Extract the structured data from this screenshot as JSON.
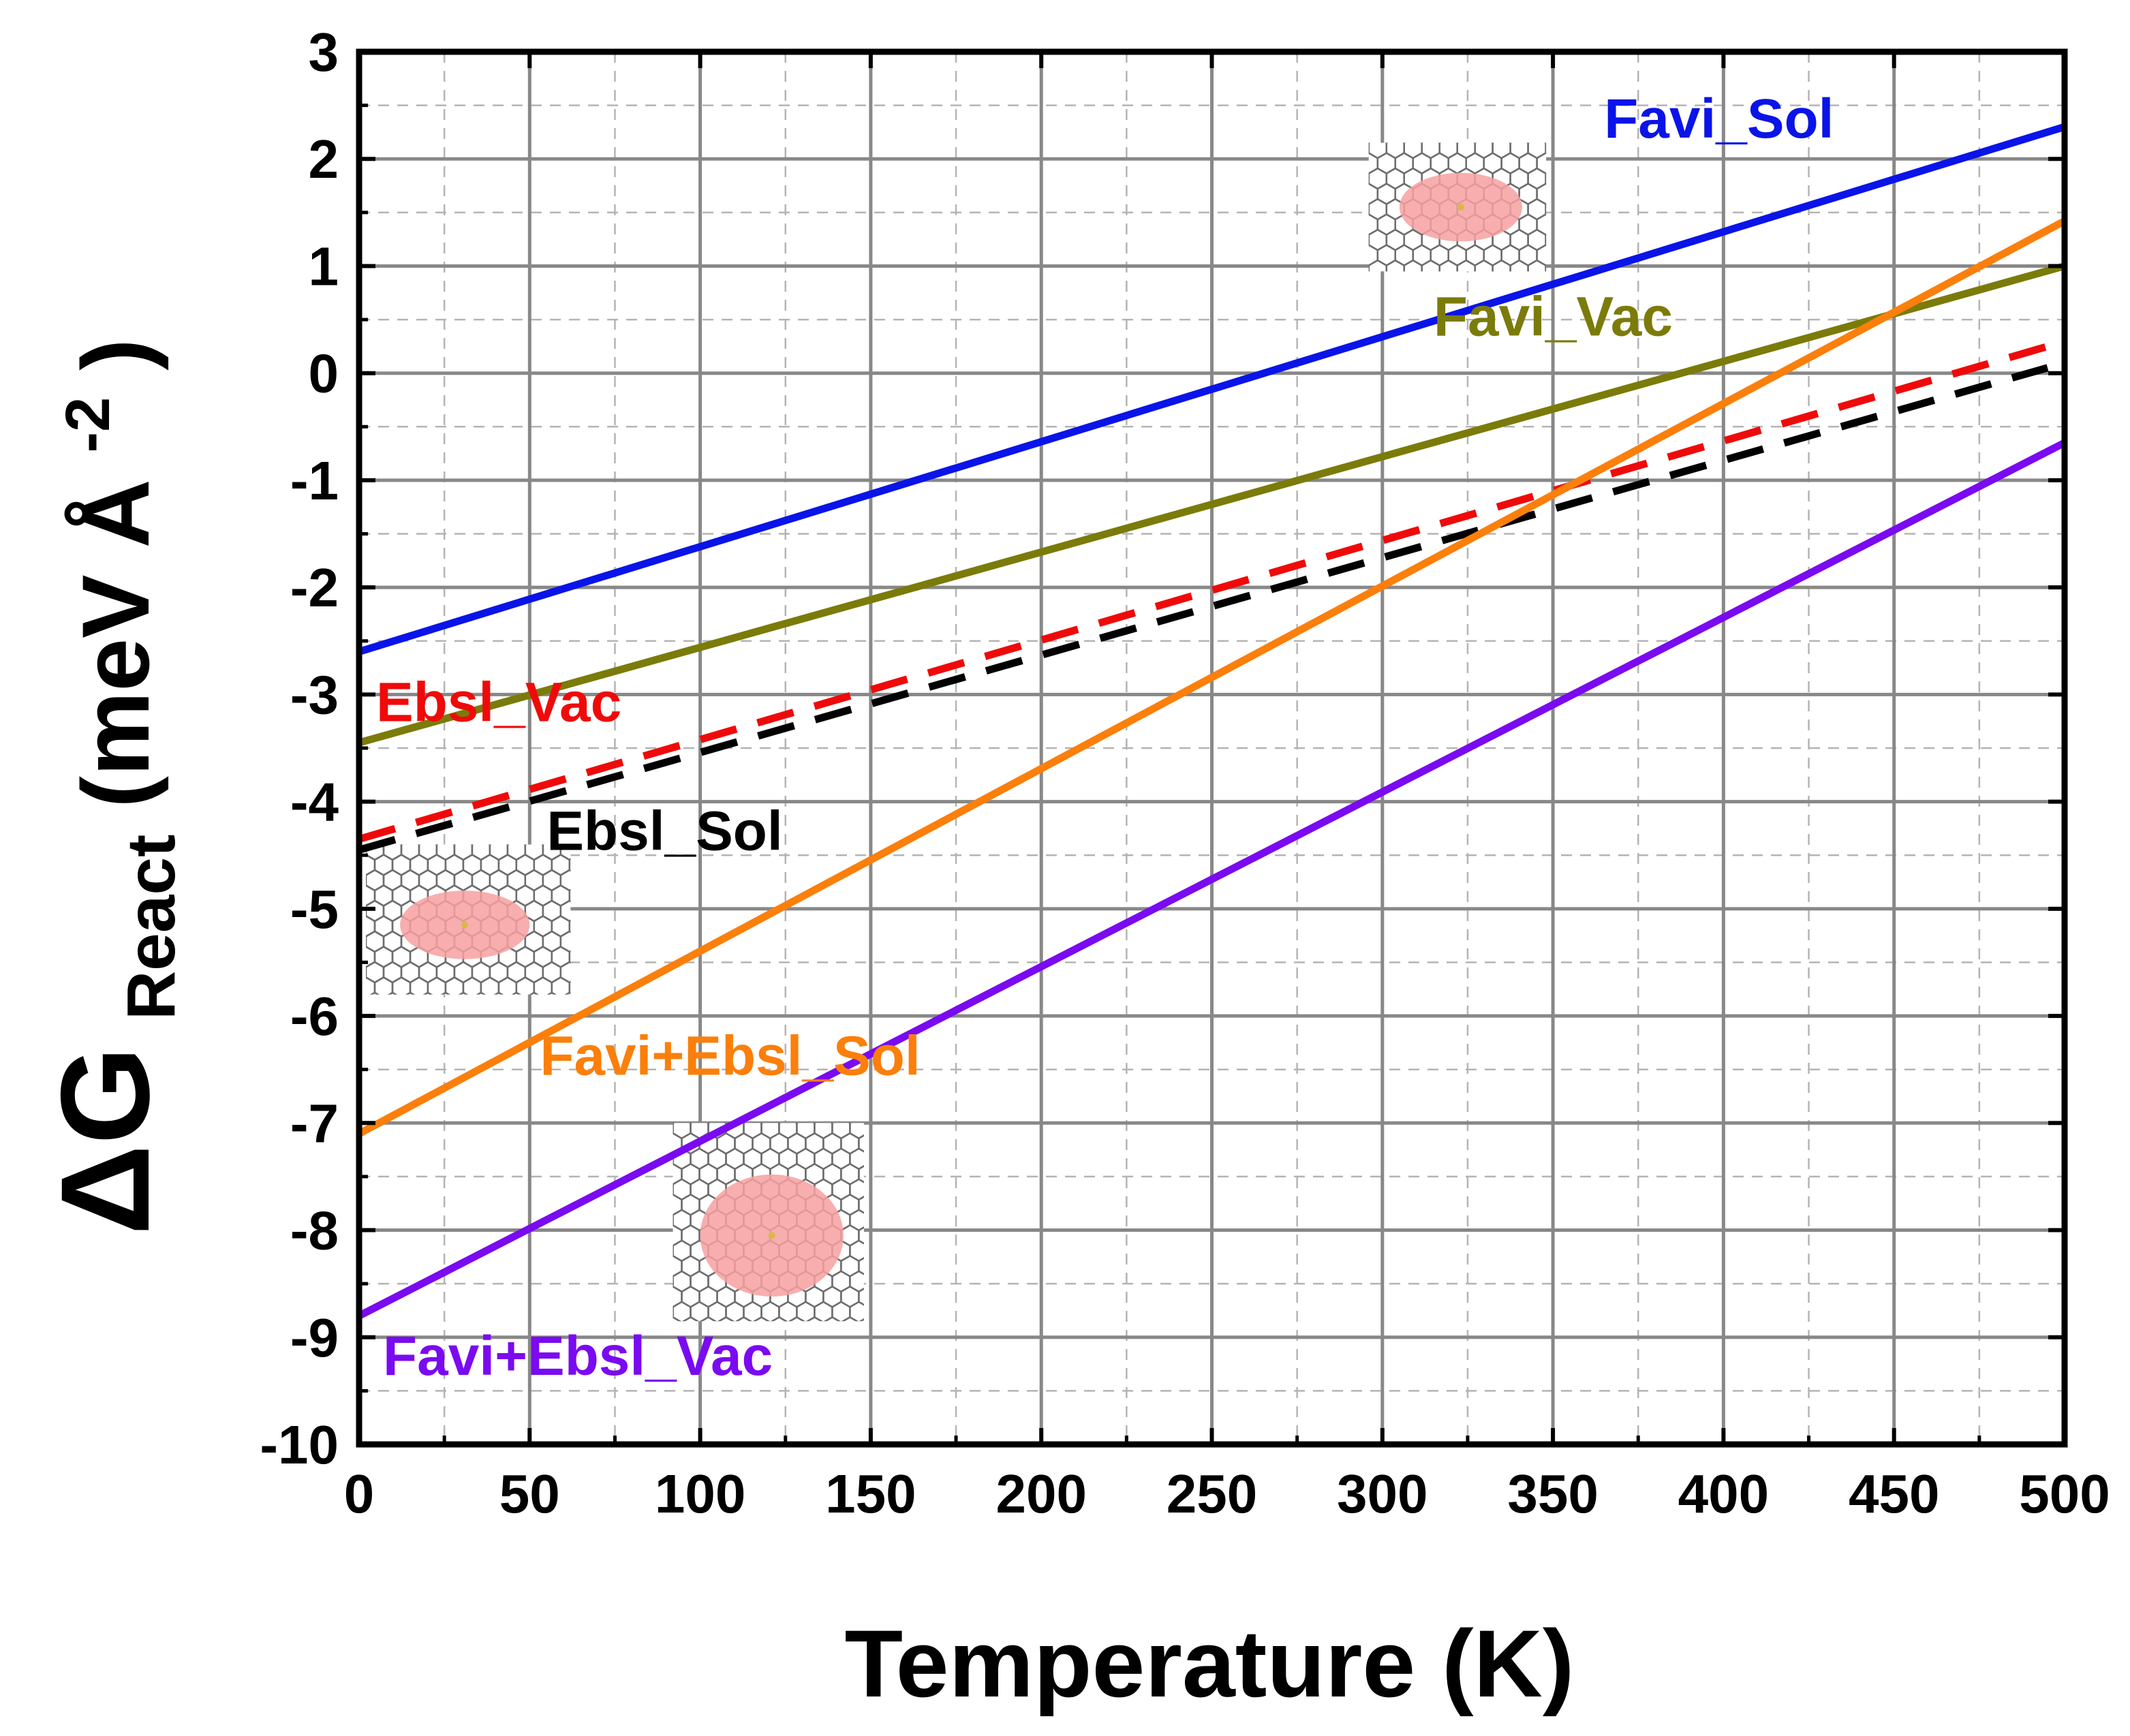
{
  "chart_data": {
    "type": "line",
    "title": "",
    "xlabel": "Temperature (K)",
    "ylabel": {
      "prefix": "ΔG",
      "subscript": "React",
      "unit_open": "(meV Å",
      "superscript": "-2",
      "unit_close": ")"
    },
    "xlim": [
      0,
      500
    ],
    "ylim": [
      -10,
      3
    ],
    "x_ticks": [
      0,
      50,
      100,
      150,
      200,
      250,
      300,
      350,
      400,
      450,
      500
    ],
    "y_ticks": [
      3,
      2,
      1,
      0,
      -1,
      -2,
      -3,
      -4,
      -5,
      -6,
      -7,
      -8,
      -9,
      -10
    ],
    "grid": true,
    "legend": "inline labels",
    "series": [
      {
        "name": "Favi_Sol",
        "color": "#0a14e8",
        "style": "solid",
        "x": [
          0,
          500
        ],
        "values": [
          -2.6,
          2.3
        ],
        "label_at": [
          365,
          2.2
        ],
        "label_anchor": "start"
      },
      {
        "name": "Favi_Vac",
        "color": "#7b7b0a",
        "style": "solid",
        "x": [
          0,
          500
        ],
        "values": [
          -3.45,
          1.0
        ],
        "label_at": [
          315,
          0.35
        ],
        "label_anchor": "start"
      },
      {
        "name": "Ebsl_Vac",
        "color": "#ef0a0a",
        "style": "dashed",
        "x": [
          0,
          495
        ],
        "values": [
          -4.35,
          0.25
        ],
        "label_at": [
          5,
          -3.25
        ],
        "label_anchor": "start"
      },
      {
        "name": "Ebsl_Sol",
        "color": "#000000",
        "style": "dashed",
        "x": [
          0,
          495
        ],
        "values": [
          -4.45,
          0.05
        ],
        "label_at": [
          55,
          -4.45
        ],
        "label_anchor": "start"
      },
      {
        "name": "Favi+Ebsl_Sol",
        "color": "#fb7f0a",
        "style": "solid",
        "x": [
          0,
          500
        ],
        "values": [
          -7.1,
          1.42
        ],
        "label_at": [
          53,
          -6.55
        ],
        "label_anchor": "start"
      },
      {
        "name": "Favi+Ebsl_Vac",
        "color": "#7a0af0",
        "style": "solid",
        "x": [
          0,
          500
        ],
        "values": [
          -8.8,
          -0.65
        ],
        "label_at": [
          7,
          -9.35
        ],
        "label_anchor": "start"
      }
    ]
  },
  "insets": [
    {
      "name": "molecule-inset-favi",
      "x_range": [
        296,
        348
      ],
      "y_range": [
        0.95,
        2.15
      ],
      "spot": [
        323,
        1.55,
        18,
        0.32
      ]
    },
    {
      "name": "molecule-inset-ebsl",
      "x_range": [
        2,
        62
      ],
      "y_range": [
        -5.8,
        -4.4
      ],
      "spot": [
        31,
        -5.15,
        19,
        0.32
      ]
    },
    {
      "name": "molecule-inset-favi-ebsl",
      "x_range": [
        92,
        148
      ],
      "y_range": [
        -8.85,
        -7.0
      ],
      "spot": [
        121,
        -8.05,
        21,
        0.57
      ]
    }
  ],
  "colors": {
    "axis": "#000000",
    "grid_major": "#888888",
    "grid_minor": "#b4b4b4",
    "inset_lattice": "#6d6d6d",
    "inset_spot": "#f7a0a0"
  }
}
